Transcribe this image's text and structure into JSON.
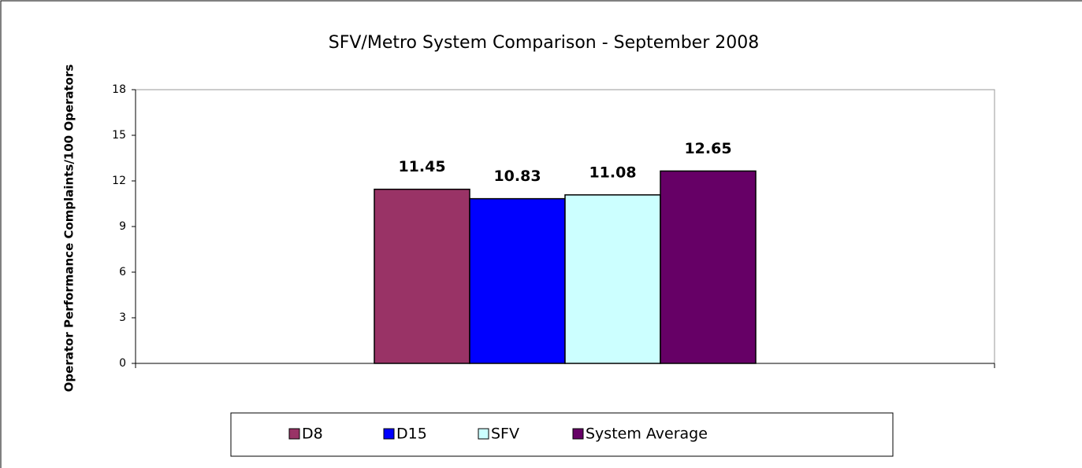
{
  "chart_data": {
    "type": "bar",
    "title": "SFV/Metro System Comparison - September 2008",
    "y_label": "Operator Performance Complaints/100 Operators",
    "categories": [
      null
    ],
    "series": [
      {
        "name": "D8",
        "color": "#993366",
        "values": [
          11.45
        ]
      },
      {
        "name": "D15",
        "color": "#0000ff",
        "values": [
          10.83
        ]
      },
      {
        "name": "SFV",
        "color": "#ccffff",
        "values": [
          11.08
        ]
      },
      {
        "name": "System Average",
        "color": "#660066",
        "values": [
          12.65
        ]
      }
    ],
    "ylim": [
      0,
      18
    ],
    "yticks": [
      0,
      3,
      6,
      9,
      12,
      15,
      18
    ],
    "grid": false,
    "legend": "bottom"
  }
}
